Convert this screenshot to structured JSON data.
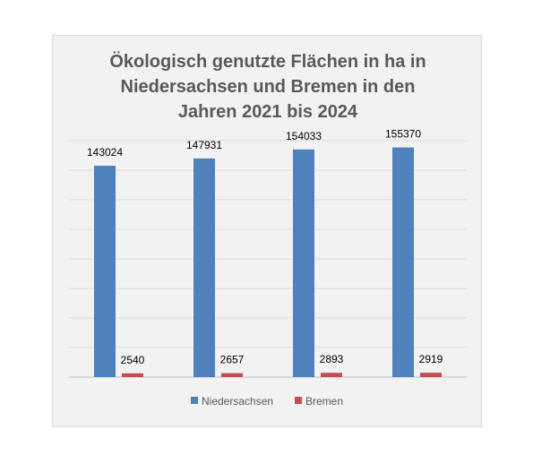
{
  "chart_data": {
    "type": "bar",
    "title_lines": [
      "Ökologisch genutzte Flächen in ha in",
      "Niedersachsen und Bremen in den",
      "Jahren 2021 bis 2024"
    ],
    "categories": [
      "",
      "",
      "",
      ""
    ],
    "series": [
      {
        "name": "Niedersachsen",
        "color": "#4f81bd",
        "values": [
          143024,
          147931,
          154033,
          155370
        ]
      },
      {
        "name": "Bremen",
        "color": "#c0504d",
        "values": [
          2540,
          2657,
          2893,
          2919
        ]
      }
    ],
    "ylim": [
      0,
      160000
    ],
    "grid": true,
    "legend_position": "bottom"
  }
}
